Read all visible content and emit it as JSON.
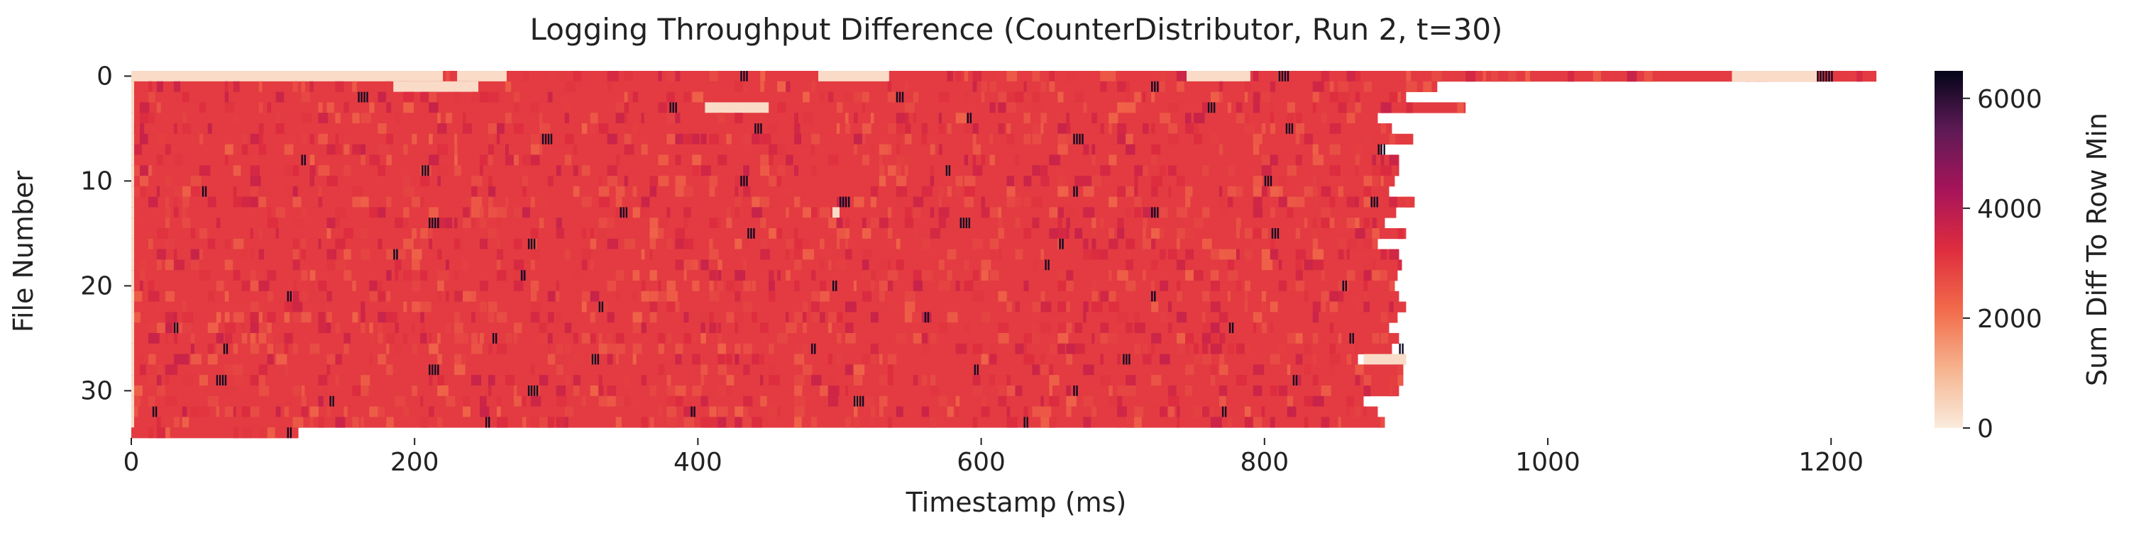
{
  "chart_data": {
    "type": "heatmap",
    "title": "Logging Throughput Difference (CounterDistributor, Run 2, t=30)",
    "xlabel": "Timestamp (ms)",
    "ylabel": "File Number",
    "xlim": [
      0,
      1250
    ],
    "ylim": [
      34,
      0
    ],
    "x_ticks": [
      0,
      200,
      400,
      600,
      800,
      1000,
      1200
    ],
    "y_ticks": [
      0,
      10,
      20,
      30
    ],
    "colorbar": {
      "label": "Sum Diff To Row Min",
      "min": 0,
      "max": 6500,
      "ticks": [
        0,
        2000,
        4000,
        6000
      ],
      "colormap": [
        "#faebdd",
        "#f6b38e",
        "#f26a4a",
        "#de2d3e",
        "#a7145a",
        "#5e1a55",
        "#03051a"
      ]
    },
    "grid": false,
    "typical_cell_value": 3000,
    "rows": [
      {
        "row": 0,
        "x_end": 1232,
        "light_segments": [
          [
            0,
            220
          ],
          [
            230,
            265
          ],
          [
            485,
            535
          ],
          [
            745,
            790
          ],
          [
            1130,
            1190
          ]
        ],
        "dark_marks": [
          [
            430,
            5
          ],
          [
            810,
            8
          ],
          [
            1190,
            12
          ]
        ]
      },
      {
        "row": 1,
        "x_end": 922,
        "light_segments": [
          [
            0,
            2
          ],
          [
            185,
            245
          ]
        ],
        "dark_marks": [
          [
            720,
            6
          ]
        ]
      },
      {
        "row": 2,
        "x_end": 900,
        "light_segments": [
          [
            0,
            2
          ]
        ],
        "dark_marks": [
          [
            160,
            8
          ],
          [
            540,
            6
          ]
        ]
      },
      {
        "row": 3,
        "x_end": 942,
        "light_segments": [
          [
            0,
            2
          ],
          [
            405,
            450
          ]
        ],
        "dark_marks": [
          [
            380,
            6
          ],
          [
            760,
            6
          ]
        ]
      },
      {
        "row": 4,
        "x_end": 880,
        "light_segments": [
          [
            0,
            2
          ]
        ],
        "dark_marks": [
          [
            590,
            4
          ]
        ]
      },
      {
        "row": 5,
        "x_end": 890,
        "light_segments": [
          [
            0,
            2
          ]
        ],
        "dark_marks": [
          [
            440,
            6
          ],
          [
            815,
            6
          ]
        ]
      },
      {
        "row": 6,
        "x_end": 905,
        "light_segments": [
          [
            0,
            2
          ]
        ],
        "dark_marks": [
          [
            290,
            8
          ],
          [
            665,
            8
          ]
        ]
      },
      {
        "row": 7,
        "x_end": 882,
        "light_segments": [
          [
            0,
            2
          ]
        ],
        "dark_marks": [
          [
            880,
            6
          ]
        ]
      },
      {
        "row": 8,
        "x_end": 895,
        "light_segments": [
          [
            0,
            2
          ]
        ],
        "dark_marks": [
          [
            120,
            3
          ]
        ]
      },
      {
        "row": 9,
        "x_end": 895,
        "light_segments": [
          [
            0,
            2
          ]
        ],
        "dark_marks": [
          [
            205,
            6
          ],
          [
            575,
            4
          ]
        ]
      },
      {
        "row": 10,
        "x_end": 892,
        "light_segments": [
          [
            0,
            2
          ]
        ],
        "dark_marks": [
          [
            430,
            6
          ],
          [
            800,
            6
          ]
        ]
      },
      {
        "row": 11,
        "x_end": 888,
        "light_segments": [
          [
            0,
            2
          ]
        ],
        "dark_marks": [
          [
            50,
            3
          ],
          [
            665,
            3
          ]
        ]
      },
      {
        "row": 12,
        "x_end": 906,
        "light_segments": [
          [
            0,
            2
          ]
        ],
        "dark_marks": [
          [
            500,
            8
          ],
          [
            875,
            6
          ]
        ]
      },
      {
        "row": 13,
        "x_end": 893,
        "light_segments": [
          [
            0,
            2
          ],
          [
            495,
            500
          ]
        ],
        "dark_marks": [
          [
            345,
            6
          ],
          [
            720,
            6
          ]
        ]
      },
      {
        "row": 14,
        "x_end": 885,
        "light_segments": [
          [
            0,
            2
          ]
        ],
        "dark_marks": [
          [
            210,
            8
          ],
          [
            585,
            8
          ]
        ]
      },
      {
        "row": 15,
        "x_end": 900,
        "light_segments": [
          [
            0,
            2
          ]
        ],
        "dark_marks": [
          [
            435,
            6
          ],
          [
            805,
            6
          ]
        ]
      },
      {
        "row": 16,
        "x_end": 880,
        "light_segments": [
          [
            0,
            2
          ]
        ],
        "dark_marks": [
          [
            280,
            6
          ],
          [
            655,
            4
          ]
        ]
      },
      {
        "row": 17,
        "x_end": 895,
        "light_segments": [
          [
            0,
            2
          ]
        ],
        "dark_marks": [
          [
            185,
            3
          ]
        ]
      },
      {
        "row": 18,
        "x_end": 897,
        "light_segments": [
          [
            0,
            2
          ]
        ],
        "dark_marks": [
          [
            645,
            3
          ]
        ]
      },
      {
        "row": 19,
        "x_end": 894,
        "light_segments": [
          [
            0,
            2
          ]
        ],
        "dark_marks": [
          [
            275,
            3
          ]
        ]
      },
      {
        "row": 20,
        "x_end": 892,
        "light_segments": [
          [
            0,
            2
          ]
        ],
        "dark_marks": [
          [
            495,
            3
          ],
          [
            855,
            3
          ]
        ]
      },
      {
        "row": 21,
        "x_end": 895,
        "light_segments": [
          [
            0,
            2
          ]
        ],
        "dark_marks": [
          [
            110,
            3
          ],
          [
            720,
            3
          ]
        ]
      },
      {
        "row": 22,
        "x_end": 900,
        "light_segments": [
          [
            0,
            2
          ]
        ],
        "dark_marks": [
          [
            330,
            3
          ]
        ]
      },
      {
        "row": 23,
        "x_end": 894,
        "light_segments": [
          [
            0,
            2
          ]
        ],
        "dark_marks": [
          [
            560,
            3
          ]
        ]
      },
      {
        "row": 24,
        "x_end": 888,
        "light_segments": [
          [
            0,
            2
          ]
        ],
        "dark_marks": [
          [
            30,
            3
          ],
          [
            775,
            3
          ]
        ]
      },
      {
        "row": 25,
        "x_end": 895,
        "light_segments": [
          [
            0,
            2
          ]
        ],
        "dark_marks": [
          [
            255,
            3
          ],
          [
            860,
            3
          ]
        ]
      },
      {
        "row": 26,
        "x_end": 890,
        "light_segments": [
          [
            0,
            2
          ]
        ],
        "dark_marks": [
          [
            65,
            3
          ],
          [
            480,
            3
          ],
          [
            895,
            3
          ]
        ]
      },
      {
        "row": 27,
        "x_end": 866,
        "light_segments": [
          [
            0,
            2
          ],
          [
            870,
            900
          ]
        ],
        "dark_marks": [
          [
            325,
            6
          ],
          [
            700,
            6
          ]
        ]
      },
      {
        "row": 28,
        "x_end": 898,
        "light_segments": [
          [
            0,
            2
          ]
        ],
        "dark_marks": [
          [
            210,
            8
          ],
          [
            595,
            3
          ]
        ]
      },
      {
        "row": 29,
        "x_end": 898,
        "light_segments": [
          [
            0,
            2
          ]
        ],
        "dark_marks": [
          [
            60,
            8
          ],
          [
            820,
            3
          ]
        ]
      },
      {
        "row": 30,
        "x_end": 895,
        "light_segments": [
          [
            0,
            2
          ]
        ],
        "dark_marks": [
          [
            280,
            8
          ],
          [
            665,
            3
          ]
        ]
      },
      {
        "row": 31,
        "x_end": 870,
        "light_segments": [
          [
            0,
            2
          ]
        ],
        "dark_marks": [
          [
            140,
            3
          ],
          [
            510,
            8
          ]
        ]
      },
      {
        "row": 32,
        "x_end": 880,
        "light_segments": [
          [
            0,
            2
          ]
        ],
        "dark_marks": [
          [
            15,
            3
          ],
          [
            395,
            3
          ],
          [
            770,
            3
          ]
        ]
      },
      {
        "row": 33,
        "x_end": 885,
        "light_segments": [
          [
            0,
            2
          ]
        ],
        "dark_marks": [
          [
            250,
            3
          ],
          [
            630,
            3
          ]
        ]
      },
      {
        "row": 34,
        "x_end": 118,
        "light_segments": [],
        "dark_marks": [
          [
            110,
            3
          ]
        ]
      }
    ]
  }
}
